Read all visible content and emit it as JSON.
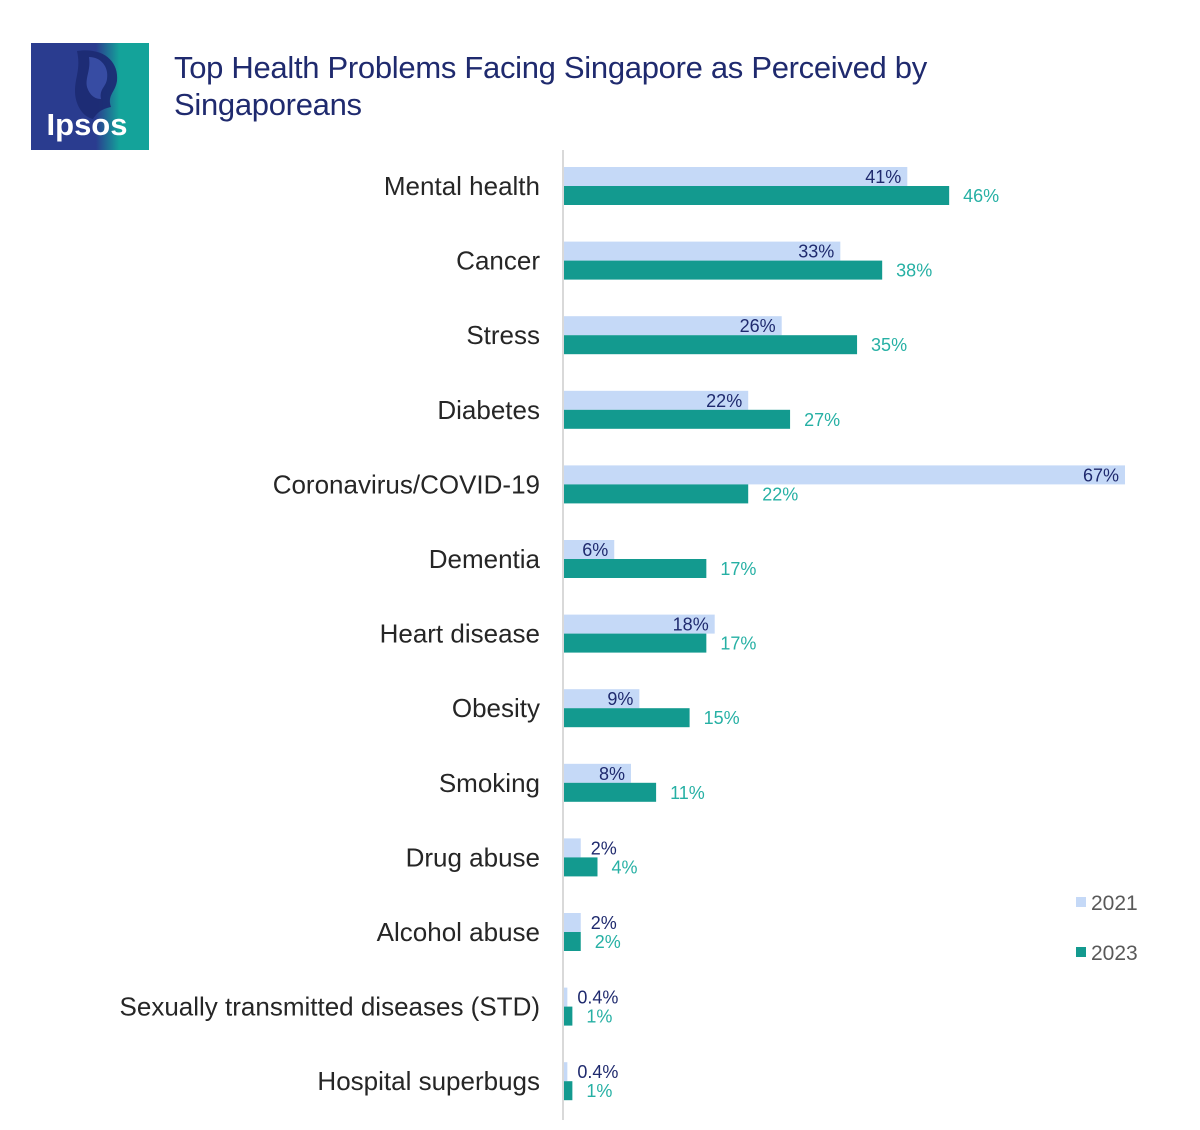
{
  "logo": {
    "text": "Ipsos",
    "colors": {
      "dark": "#2a3c8f",
      "teal": "#14a39a"
    }
  },
  "chart_data": {
    "type": "bar",
    "orientation": "horizontal",
    "title": "Top Health Problems Facing Singapore as Perceived by Singaporeans",
    "categories": [
      "Mental health",
      "Cancer",
      "Stress",
      "Diabetes",
      "Coronavirus/COVID-19",
      "Dementia",
      "Heart disease",
      "Obesity",
      "Smoking",
      "Drug abuse",
      "Alcohol abuse",
      "Sexually transmitted diseases (STD)",
      "Hospital superbugs"
    ],
    "series": [
      {
        "name": "2021",
        "color": "#c5d9f7",
        "label_color": "#1f2a6e",
        "values": [
          41,
          33,
          26,
          22,
          67,
          6,
          18,
          9,
          8,
          2,
          2,
          0.4,
          0.4
        ],
        "labels": [
          "41%",
          "33%",
          "26%",
          "22%",
          "67%",
          "6%",
          "18%",
          "9%",
          "8%",
          "2%",
          "2%",
          "0.4%",
          "0.4%"
        ]
      },
      {
        "name": "2023",
        "color": "#139a8f",
        "label_color": "#26b0a4",
        "values": [
          46,
          38,
          35,
          27,
          22,
          17,
          17,
          15,
          11,
          4,
          2,
          1,
          1
        ],
        "labels": [
          "46%",
          "38%",
          "35%",
          "27%",
          "22%",
          "17%",
          "17%",
          "15%",
          "11%",
          "4%",
          "2%",
          "1%",
          "1%"
        ]
      }
    ],
    "xlim": [
      0,
      67
    ],
    "grid": false,
    "legend_position": "bottom-right",
    "axis_line_color": "#d9d9d9"
  }
}
